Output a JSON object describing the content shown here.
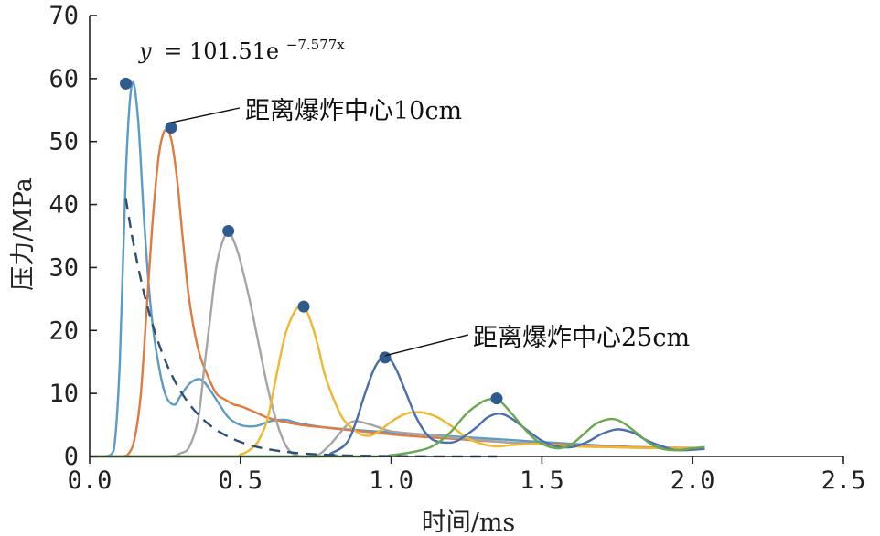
{
  "chart_data": {
    "type": "line",
    "xlabel": "时间/ms",
    "ylabel": "压力/MPa",
    "xlim": [
      0.0,
      2.5
    ],
    "ylim": [
      0,
      70
    ],
    "x_ticks": [
      0.0,
      0.5,
      1.0,
      1.5,
      2.0,
      2.5
    ],
    "x_tick_labels": [
      "0.0",
      "0.5",
      "1.0",
      "1.5",
      "2.0",
      "2.5"
    ],
    "y_ticks": [
      0,
      10,
      20,
      30,
      40,
      50,
      60,
      70
    ],
    "y_tick_labels": [
      "0",
      "10",
      "20",
      "30",
      "40",
      "50",
      "60",
      "70"
    ],
    "grid": false,
    "series": [
      {
        "color": "#5b9bc6",
        "x": [
          0.0,
          0.05,
          0.08,
          0.1,
          0.12,
          0.14,
          0.16,
          0.18,
          0.2,
          0.22,
          0.25,
          0.28,
          0.3,
          0.33,
          0.36,
          0.38,
          0.4,
          0.43,
          0.46,
          0.5,
          0.55,
          0.6,
          0.65,
          0.7,
          0.8,
          1.0,
          1.2,
          1.4,
          1.6,
          1.8,
          2.04
        ],
        "y": [
          0,
          0,
          1,
          15,
          45,
          59,
          54,
          38,
          25,
          17,
          10,
          8.2,
          9.5,
          11.5,
          12.3,
          11.8,
          10.5,
          8.3,
          6.2,
          5.0,
          4.8,
          5.6,
          5.8,
          5.2,
          4.5,
          3.8,
          3.2,
          2.6,
          2.0,
          1.5,
          1.2
        ]
      },
      {
        "color": "#e07a3f",
        "x": [
          0.0,
          0.1,
          0.13,
          0.15,
          0.17,
          0.19,
          0.21,
          0.23,
          0.25,
          0.27,
          0.29,
          0.31,
          0.33,
          0.36,
          0.39,
          0.42,
          0.45,
          0.48,
          0.5,
          0.55,
          0.6,
          0.7,
          0.8,
          1.0,
          1.2,
          1.4,
          1.6,
          1.8,
          2.04
        ],
        "y": [
          0,
          0,
          0.5,
          3,
          10,
          24,
          38,
          48,
          51.8,
          50.5,
          44,
          34,
          25,
          17,
          13,
          10,
          9,
          8.2,
          8,
          7,
          6,
          5,
          4.5,
          3.5,
          2.8,
          2.2,
          1.8,
          1.5,
          1.3
        ]
      },
      {
        "color": "#a5a5a5",
        "x": [
          0.0,
          0.25,
          0.3,
          0.33,
          0.36,
          0.38,
          0.4,
          0.42,
          0.44,
          0.46,
          0.48,
          0.5,
          0.53,
          0.56,
          0.59,
          0.62,
          0.65,
          0.68,
          0.72,
          0.76,
          0.8,
          0.85,
          0.88,
          0.92,
          0.96,
          1.0,
          1.1,
          1.2,
          1.3,
          1.4,
          1.6,
          1.8,
          2.04
        ],
        "y": [
          0,
          0,
          0.5,
          1.5,
          6,
          14,
          22,
          30,
          34,
          35.6,
          34,
          31,
          25,
          18,
          11,
          5.5,
          1.8,
          0.3,
          0,
          0.3,
          2,
          4.8,
          5.6,
          5.2,
          4.6,
          4.0,
          3.5,
          3.0,
          2.6,
          2.2,
          1.7,
          1.4,
          1.2
        ]
      },
      {
        "color": "#f0b731",
        "x": [
          0.0,
          0.45,
          0.5,
          0.53,
          0.56,
          0.59,
          0.62,
          0.65,
          0.68,
          0.7,
          0.72,
          0.74,
          0.76,
          0.78,
          0.81,
          0.84,
          0.87,
          0.9,
          0.93,
          0.96,
          1.0,
          1.05,
          1.1,
          1.15,
          1.2,
          1.25,
          1.3,
          1.35,
          1.4,
          1.5,
          1.6,
          1.8,
          2.04
        ],
        "y": [
          0,
          0,
          0.3,
          1,
          2.5,
          6,
          13,
          19.5,
          23,
          23.8,
          23,
          20.5,
          17,
          13,
          9,
          6,
          4.5,
          3.5,
          3.3,
          4,
          5.5,
          6.8,
          7.0,
          6.3,
          4.8,
          3.0,
          2.0,
          1.6,
          1.8,
          2.0,
          1.6,
          1.4,
          1.2
        ]
      },
      {
        "color": "#4a6fae",
        "x": [
          0.0,
          0.75,
          0.8,
          0.85,
          0.88,
          0.91,
          0.94,
          0.96,
          0.98,
          1.0,
          1.02,
          1.05,
          1.08,
          1.11,
          1.14,
          1.18,
          1.22,
          1.28,
          1.32,
          1.36,
          1.4,
          1.45,
          1.5,
          1.55,
          1.6,
          1.65,
          1.7,
          1.75,
          1.8,
          1.85,
          1.9,
          1.95,
          2.04
        ],
        "y": [
          0,
          0,
          0.5,
          2,
          5,
          9.5,
          13.5,
          15.2,
          15.7,
          15.2,
          13.5,
          10,
          6.5,
          4,
          2.6,
          2.2,
          2.5,
          4.5,
          6.2,
          6.8,
          6.0,
          4.2,
          2.5,
          1.6,
          1.5,
          2.3,
          3.6,
          4.3,
          3.8,
          2.5,
          1.6,
          1.0,
          1.2
        ]
      },
      {
        "color": "#6aa84f",
        "x": [
          0.0,
          0.9,
          1.0,
          1.1,
          1.15,
          1.2,
          1.25,
          1.3,
          1.33,
          1.36,
          1.4,
          1.44,
          1.48,
          1.52,
          1.56,
          1.6,
          1.64,
          1.68,
          1.72,
          1.75,
          1.78,
          1.82,
          1.86,
          1.9,
          1.95,
          2.0,
          2.04
        ],
        "y": [
          0,
          0,
          0.2,
          1,
          2,
          4,
          6.8,
          8.6,
          9.1,
          8.8,
          6.8,
          4.5,
          2.6,
          1.6,
          1.3,
          2.0,
          3.6,
          5.2,
          5.9,
          5.8,
          5.0,
          3.5,
          2.0,
          1.2,
          1.0,
          1.3,
          1.5
        ]
      }
    ],
    "peaks": {
      "x": [
        0.12,
        0.27,
        0.46,
        0.71,
        0.98,
        1.35
      ],
      "y": [
        59.2,
        52.2,
        35.8,
        23.8,
        15.7,
        9.2
      ]
    },
    "fit": {
      "coef": 101.51,
      "rate": -7.577,
      "x_start": 0.12,
      "x_end": 1.35
    },
    "equation": {
      "var": "y",
      "text": "= 101.51e",
      "exponent": "−7.577x"
    },
    "annotations": [
      {
        "text": "距离爆炸中心10cm",
        "arrow_x": 0.27,
        "arrow_y": 53.0
      },
      {
        "text": "距离爆炸中心25cm",
        "arrow_x": 0.98,
        "arrow_y": 16.0
      }
    ],
    "colors": {
      "fit_line": "#2e4e72",
      "peak_marker": "#2e5a8e",
      "axis": "#222222"
    }
  }
}
